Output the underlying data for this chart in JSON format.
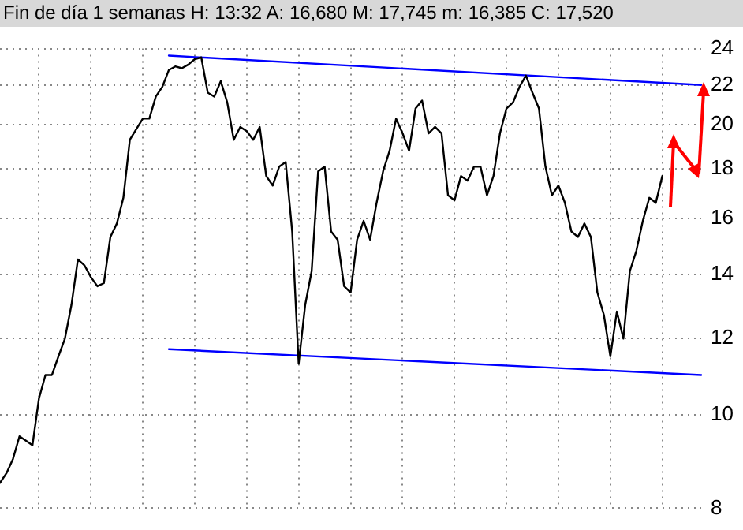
{
  "chart_data": {
    "type": "line",
    "title": "Fin de día 1 semanas H: 13:32 A: 16,680 M: 17,745 m: 16,385 C: 17,520",
    "categories": [
      null,
      null,
      null,
      null,
      null,
      null,
      null,
      null,
      null,
      null,
      null,
      null,
      null,
      null,
      null,
      null,
      null,
      null,
      null,
      null,
      null,
      null,
      null,
      null,
      null,
      null,
      null,
      null,
      null,
      null,
      null,
      null,
      null,
      null,
      null,
      null,
      null,
      null,
      null,
      null,
      null,
      null,
      null,
      null,
      null,
      null,
      null,
      null,
      null,
      null,
      null,
      null,
      null,
      null,
      null,
      null,
      null,
      null,
      null,
      null,
      null,
      null,
      null,
      null,
      null,
      null,
      null,
      null,
      null,
      null,
      null,
      null,
      null,
      null,
      null,
      null,
      null,
      null,
      null,
      null,
      null,
      null,
      null,
      null,
      null,
      null,
      null,
      null,
      null,
      null,
      null,
      null,
      null,
      null,
      null,
      null,
      null,
      null,
      null,
      null,
      null,
      null,
      null,
      null,
      null,
      null,
      null,
      null,
      null
    ],
    "series": [
      {
        "color": "#000000",
        "values": [
          8.5,
          8.7,
          9.0,
          9.5,
          9.4,
          9.3,
          10.4,
          11.0,
          11.0,
          11.5,
          12.0,
          13.0,
          14.5,
          14.3,
          13.9,
          13.6,
          13.7,
          15.3,
          15.8,
          16.8,
          19.3,
          19.8,
          20.3,
          20.3,
          21.4,
          21.9,
          22.8,
          23.0,
          22.9,
          23.1,
          23.4,
          23.5,
          21.6,
          21.4,
          22.2,
          21.1,
          19.3,
          19.9,
          19.7,
          19.3,
          19.9,
          17.7,
          17.3,
          18.1,
          18.3,
          15.5,
          11.3,
          13.0,
          14.1,
          17.9,
          18.1,
          15.5,
          15.2,
          13.6,
          13.4,
          15.2,
          15.9,
          15.2,
          16.6,
          17.9,
          18.8,
          20.3,
          19.6,
          18.8,
          20.8,
          21.2,
          19.6,
          19.9,
          19.6,
          16.9,
          16.7,
          17.7,
          17.5,
          18.1,
          18.1,
          16.9,
          17.7,
          19.6,
          20.8,
          21.1,
          21.9,
          22.5,
          21.6,
          20.8,
          18.1,
          16.9,
          17.3,
          16.6,
          15.5,
          15.3,
          15.8,
          15.3,
          13.4,
          12.7,
          11.5,
          12.8,
          12.0,
          14.1,
          14.8,
          15.9,
          16.8,
          16.6,
          17.7,
          null,
          null,
          null,
          null,
          null,
          null
        ]
      },
      {
        "color": "#0000ff",
        "values": [
          null,
          null,
          null,
          null,
          null,
          null,
          null,
          null,
          null,
          null,
          null,
          null,
          null,
          null,
          null,
          null,
          null,
          null,
          null,
          null,
          null,
          null,
          null,
          null,
          null,
          null,
          23.6,
          null,
          null,
          null,
          null,
          null,
          null,
          null,
          null,
          null,
          null,
          null,
          null,
          null,
          null,
          null,
          null,
          null,
          null,
          null,
          null,
          null,
          null,
          null,
          null,
          null,
          null,
          null,
          null,
          null,
          null,
          null,
          null,
          null,
          null,
          null,
          null,
          null,
          null,
          null,
          null,
          null,
          null,
          null,
          null,
          null,
          null,
          null,
          null,
          null,
          null,
          null,
          null,
          null,
          null,
          null,
          null,
          null,
          null,
          null,
          null,
          null,
          null,
          null,
          null,
          null,
          null,
          null,
          null,
          null,
          null,
          null,
          null,
          null,
          null,
          null,
          null,
          null,
          null,
          null,
          null,
          null,
          22.0
        ]
      },
      {
        "color": "#0000ff",
        "values": [
          null,
          null,
          null,
          null,
          null,
          null,
          null,
          null,
          null,
          null,
          null,
          null,
          null,
          null,
          null,
          null,
          null,
          null,
          null,
          null,
          null,
          null,
          null,
          null,
          null,
          null,
          11.7,
          null,
          null,
          null,
          null,
          null,
          null,
          null,
          null,
          null,
          null,
          null,
          null,
          null,
          null,
          null,
          null,
          null,
          null,
          null,
          null,
          null,
          null,
          null,
          null,
          null,
          null,
          null,
          null,
          null,
          null,
          null,
          null,
          null,
          null,
          null,
          null,
          null,
          null,
          null,
          null,
          null,
          null,
          null,
          null,
          null,
          null,
          null,
          null,
          null,
          null,
          null,
          null,
          null,
          null,
          null,
          null,
          null,
          null,
          null,
          null,
          null,
          null,
          null,
          null,
          null,
          null,
          null,
          null,
          null,
          null,
          null,
          null,
          null,
          null,
          null,
          null,
          null,
          null,
          null,
          null,
          null,
          11.0
        ]
      }
    ],
    "ylim": [
      8,
      24
    ],
    "yticks": [
      8,
      10,
      12,
      14,
      16,
      18,
      20,
      22,
      24
    ],
    "log": true,
    "grid": true,
    "tick_labels": "y"
  }
}
